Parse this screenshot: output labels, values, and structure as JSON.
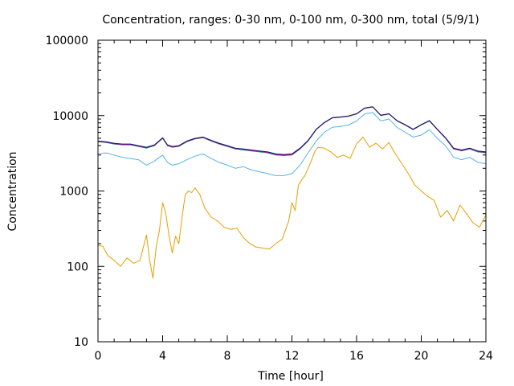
{
  "chart_data": {
    "type": "line",
    "title": "Concentration, ranges: 0-30 nm, 0-100 nm, 0-300 nm, total (5/9/1)",
    "xlabel": "Time [hour]",
    "ylabel": "Concentration",
    "xlim": [
      0,
      24
    ],
    "ylim": [
      10,
      100000
    ],
    "yscale": "log",
    "grid": false,
    "xticks": [
      0,
      4,
      8,
      12,
      16,
      20,
      24
    ],
    "xtick_labels": [
      "0",
      "4",
      "8",
      "12",
      "16",
      "20",
      "24"
    ],
    "yticks": [
      10,
      100,
      1000,
      10000,
      100000
    ],
    "ytick_labels": [
      "10",
      "100",
      "1000",
      "10000",
      "100000"
    ],
    "series": [
      {
        "color": "#e69f00",
        "x": [
          0,
          0.3,
          0.6,
          1.0,
          1.4,
          1.8,
          2.2,
          2.6,
          3.0,
          3.2,
          3.4,
          3.6,
          3.8,
          4.0,
          4.2,
          4.4,
          4.6,
          4.8,
          5.0,
          5.2,
          5.4,
          5.6,
          5.8,
          6.0,
          6.3,
          6.6,
          7.0,
          7.4,
          7.8,
          8.2,
          8.6,
          9.0,
          9.4,
          9.8,
          10.2,
          10.6,
          11.0,
          11.4,
          11.8,
          12.0,
          12.2,
          12.4,
          12.6,
          12.8,
          13.0,
          13.2,
          13.4,
          13.6,
          14.0,
          14.4,
          14.8,
          15.2,
          15.6,
          16.0,
          16.4,
          16.8,
          17.2,
          17.6,
          18.0,
          18.4,
          18.8,
          19.2,
          19.6,
          20.0,
          20.4,
          20.8,
          21.2,
          21.6,
          22.0,
          22.4,
          22.8,
          23.2,
          23.6,
          24.0
        ],
        "values": [
          190,
          185,
          140,
          120,
          100,
          130,
          110,
          120,
          260,
          120,
          70,
          180,
          300,
          700,
          500,
          250,
          150,
          250,
          200,
          450,
          900,
          1000,
          950,
          1100,
          900,
          600,
          450,
          400,
          330,
          310,
          320,
          240,
          200,
          180,
          175,
          170,
          200,
          230,
          400,
          700,
          550,
          1200,
          1400,
          1600,
          2000,
          2500,
          3300,
          3800,
          3700,
          3300,
          2800,
          3000,
          2700,
          4200,
          5200,
          3800,
          4300,
          3600,
          4400,
          3100,
          2300,
          1700,
          1200,
          1000,
          850,
          750,
          450,
          550,
          400,
          650,
          500,
          380,
          330,
          480
        ]
      },
      {
        "color": "#56b4e9",
        "x": [
          0,
          0.5,
          1.0,
          1.5,
          2.0,
          2.5,
          3.0,
          3.5,
          4.0,
          4.3,
          4.6,
          5.0,
          5.5,
          6.0,
          6.5,
          7.0,
          7.5,
          8.0,
          8.5,
          9.0,
          9.5,
          10.0,
          10.5,
          11.0,
          11.5,
          12.0,
          12.5,
          13.0,
          13.5,
          14.0,
          14.5,
          15.0,
          15.5,
          16.0,
          16.5,
          17.0,
          17.5,
          18.0,
          18.5,
          19.0,
          19.5,
          20.0,
          20.5,
          21.0,
          21.5,
          22.0,
          22.5,
          23.0,
          23.5,
          24.0
        ],
        "values": [
          3100,
          3200,
          3000,
          2800,
          2700,
          2600,
          2200,
          2500,
          3000,
          2400,
          2200,
          2300,
          2600,
          2900,
          3100,
          2700,
          2400,
          2200,
          2000,
          2100,
          1900,
          1800,
          1700,
          1600,
          1600,
          1700,
          2200,
          3200,
          4600,
          6000,
          7000,
          7200,
          7500,
          8500,
          10500,
          11000,
          8500,
          9000,
          7000,
          6000,
          5200,
          5500,
          6500,
          5000,
          4000,
          2800,
          2600,
          2800,
          2400,
          2300
        ]
      },
      {
        "color": "#009e73",
        "x": [
          0,
          0.5,
          1.0,
          1.5,
          2.0,
          2.5,
          3.0,
          3.5,
          4.0,
          4.3,
          4.6,
          5.0,
          5.5,
          6.0,
          6.5,
          7.0,
          7.5,
          8.0,
          8.5,
          9.0,
          9.5,
          10.0,
          10.5,
          11.0,
          11.5,
          12.0,
          12.5,
          13.0,
          13.5,
          14.0,
          14.5,
          15.0,
          15.5,
          16.0,
          16.5,
          17.0,
          17.5,
          18.0,
          18.5,
          19.0,
          19.5,
          20.0,
          20.5,
          21.0,
          21.5,
          22.0,
          22.5,
          23.0,
          23.5,
          24.0
        ],
        "values": [
          4500,
          4400,
          4200,
          4100,
          4100,
          3900,
          3700,
          4000,
          5000,
          4000,
          3800,
          3900,
          4500,
          4900,
          5100,
          4600,
          4200,
          3900,
          3600,
          3500,
          3400,
          3300,
          3200,
          3000,
          2950,
          3000,
          3600,
          4600,
          6500,
          8000,
          9300,
          9500,
          9800,
          10500,
          12500,
          13000,
          10000,
          10500,
          8500,
          7500,
          6500,
          7500,
          8500,
          6500,
          5000,
          3600,
          3400,
          3600,
          3300,
          3200
        ]
      },
      {
        "color": "#e000b0",
        "x": [
          0,
          0.5,
          1.0,
          1.5,
          2.0,
          2.5,
          3.0,
          3.5,
          4.0,
          4.3,
          4.6,
          5.0,
          5.5,
          6.0,
          6.5,
          7.0,
          7.5,
          8.0,
          8.5,
          9.0,
          9.5,
          10.0,
          10.5,
          11.0,
          11.5,
          12.0,
          12.5,
          13.0,
          13.5,
          14.0,
          14.5,
          15.0,
          15.5,
          16.0,
          16.5,
          17.0,
          17.5,
          18.0,
          18.5,
          19.0,
          19.5,
          20.0,
          20.5,
          21.0,
          21.5,
          22.0,
          22.5,
          23.0,
          23.5,
          24.0
        ],
        "values": [
          4550,
          4450,
          4250,
          4150,
          4150,
          3950,
          3750,
          4050,
          5050,
          4050,
          3850,
          3950,
          4550,
          4950,
          5150,
          4650,
          4250,
          3950,
          3650,
          3550,
          3450,
          3350,
          3250,
          3050,
          3000,
          3050,
          3650,
          4650,
          6550,
          8050,
          9350,
          9550,
          9850,
          10550,
          12550,
          13050,
          10050,
          10550,
          8550,
          7550,
          6550,
          7550,
          8550,
          6550,
          5050,
          3650,
          3450,
          3650,
          3350,
          3250
        ]
      },
      {
        "color": "#0a1a6a",
        "x": [
          0,
          0.5,
          1.0,
          1.5,
          2.0,
          2.5,
          3.0,
          3.5,
          4.0,
          4.3,
          4.6,
          5.0,
          5.5,
          6.0,
          6.5,
          7.0,
          7.5,
          8.0,
          8.5,
          9.0,
          9.5,
          10.0,
          10.5,
          11.0,
          11.5,
          12.0,
          12.5,
          13.0,
          13.5,
          14.0,
          14.5,
          15.0,
          15.5,
          16.0,
          16.5,
          17.0,
          17.5,
          18.0,
          18.5,
          19.0,
          19.5,
          20.0,
          20.5,
          21.0,
          21.5,
          22.0,
          22.5,
          23.0,
          23.5,
          24.0
        ],
        "values": [
          4600,
          4500,
          4300,
          4200,
          4200,
          4000,
          3800,
          4100,
          5100,
          4100,
          3900,
          4000,
          4600,
          5000,
          5200,
          4700,
          4300,
          4000,
          3700,
          3600,
          3500,
          3400,
          3300,
          3100,
          3050,
          3100,
          3700,
          4700,
          6600,
          8100,
          9400,
          9600,
          9900,
          10600,
          12600,
          13100,
          10100,
          10600,
          8600,
          7600,
          6600,
          7600,
          8600,
          6600,
          5100,
          3700,
          3500,
          3700,
          3400,
          3300
        ]
      }
    ]
  }
}
